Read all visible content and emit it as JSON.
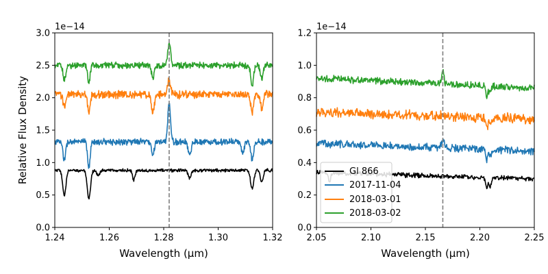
{
  "chart_data": [
    {
      "type": "line",
      "panel": "left",
      "xlabel": "Wavelength (μm)",
      "ylabel": "Relative Flux Density",
      "y_offset_text": "1e−14",
      "xlim": [
        1.24,
        1.32
      ],
      "ylim": [
        0.0,
        3.0
      ],
      "xticks": [
        1.24,
        1.26,
        1.28,
        1.3,
        1.32
      ],
      "xtick_labels": [
        "1.24",
        "1.26",
        "1.28",
        "1.30",
        "1.32"
      ],
      "yticks": [
        0.0,
        0.5,
        1.0,
        1.5,
        2.0,
        2.5,
        3.0
      ],
      "ytick_labels": [
        "0.0",
        "0.5",
        "1.0",
        "1.5",
        "2.0",
        "2.5",
        "3.0"
      ],
      "reference_line": {
        "x": 1.282,
        "style": "dashed",
        "color": "#7f7f7f"
      },
      "grid": false,
      "series": [
        {
          "color": "#000000",
          "base": 0.88,
          "noise": 0.02,
          "features": [
            {
              "x": 1.2435,
              "depth": -0.38,
              "width": 0.0006
            },
            {
              "x": 1.2525,
              "depth": -0.45,
              "width": 0.0006
            },
            {
              "x": 1.256,
              "depth": -0.08,
              "width": 0.0005
            },
            {
              "x": 1.269,
              "depth": -0.15,
              "width": 0.0005
            },
            {
              "x": 1.2895,
              "depth": -0.12,
              "width": 0.0005
            },
            {
              "x": 1.3125,
              "depth": -0.28,
              "width": 0.0006
            },
            {
              "x": 1.316,
              "depth": -0.18,
              "width": 0.0005
            }
          ]
        },
        {
          "color": "#1f77b4",
          "base": 1.32,
          "noise": 0.04,
          "features": [
            {
              "x": 1.282,
              "depth": 0.58,
              "width": 0.0005
            },
            {
              "x": 1.2435,
              "depth": -0.28,
              "width": 0.0005
            },
            {
              "x": 1.2525,
              "depth": -0.38,
              "width": 0.0005
            },
            {
              "x": 1.276,
              "depth": -0.2,
              "width": 0.0005
            },
            {
              "x": 1.2895,
              "depth": -0.22,
              "width": 0.0005
            },
            {
              "x": 1.309,
              "depth": -0.18,
              "width": 0.0005
            },
            {
              "x": 1.3125,
              "depth": -0.28,
              "width": 0.0005
            }
          ]
        },
        {
          "color": "#ff7f0e",
          "base": 2.05,
          "noise": 0.05,
          "features": [
            {
              "x": 1.282,
              "depth": 0.22,
              "width": 0.0005
            },
            {
              "x": 1.2435,
              "depth": -0.18,
              "width": 0.0005
            },
            {
              "x": 1.2525,
              "depth": -0.25,
              "width": 0.0005
            },
            {
              "x": 1.276,
              "depth": -0.3,
              "width": 0.0005
            },
            {
              "x": 1.3125,
              "depth": -0.28,
              "width": 0.0005
            },
            {
              "x": 1.316,
              "depth": -0.22,
              "width": 0.0005
            }
          ]
        },
        {
          "color": "#2ca02c",
          "base": 2.5,
          "noise": 0.04,
          "features": [
            {
              "x": 1.282,
              "depth": 0.35,
              "width": 0.0005
            },
            {
              "x": 1.2435,
              "depth": -0.22,
              "width": 0.0005
            },
            {
              "x": 1.2525,
              "depth": -0.25,
              "width": 0.0005
            },
            {
              "x": 1.276,
              "depth": -0.2,
              "width": 0.0005
            },
            {
              "x": 1.3125,
              "depth": -0.3,
              "width": 0.0005
            },
            {
              "x": 1.316,
              "depth": -0.22,
              "width": 0.0005
            }
          ]
        }
      ]
    },
    {
      "type": "line",
      "panel": "right",
      "xlabel": "Wavelength (μm)",
      "ylabel": "",
      "y_offset_text": "1e−14",
      "xlim": [
        2.05,
        2.25
      ],
      "ylim": [
        0.0,
        1.2
      ],
      "xticks": [
        2.05,
        2.1,
        2.15,
        2.2,
        2.25
      ],
      "xtick_labels": [
        "2.05",
        "2.10",
        "2.15",
        "2.20",
        "2.25"
      ],
      "yticks": [
        0.0,
        0.2,
        0.4,
        0.6,
        0.8,
        1.0,
        1.2
      ],
      "ytick_labels": [
        "0.0",
        "0.2",
        "0.4",
        "0.6",
        "0.8",
        "1.0",
        "1.2"
      ],
      "reference_line": {
        "x": 2.166,
        "style": "dashed",
        "color": "#7f7f7f"
      },
      "grid": false,
      "legend_position": "lower-left",
      "series": [
        {
          "name": "Gl 866",
          "color": "#000000",
          "base_start": 0.34,
          "base_end": 0.3,
          "noise": 0.012,
          "features": [
            {
              "x": 2.062,
              "depth": -0.06,
              "width": 0.001
            },
            {
              "x": 2.2065,
              "depth": -0.07,
              "width": 0.001
            },
            {
              "x": 2.2095,
              "depth": -0.06,
              "width": 0.001
            }
          ]
        },
        {
          "name": "2017-11-04",
          "color": "#1f77b4",
          "base_start": 0.52,
          "base_end": 0.47,
          "noise": 0.02,
          "features": [
            {
              "x": 2.166,
              "depth": 0.05,
              "width": 0.0012
            },
            {
              "x": 2.2065,
              "depth": -0.06,
              "width": 0.001
            },
            {
              "x": 2.2095,
              "depth": -0.05,
              "width": 0.001
            }
          ]
        },
        {
          "name": "2018-03-01",
          "color": "#ff7f0e",
          "base_start": 0.71,
          "base_end": 0.67,
          "noise": 0.025,
          "features": [
            {
              "x": 2.2065,
              "depth": -0.07,
              "width": 0.001
            },
            {
              "x": 2.2095,
              "depth": -0.05,
              "width": 0.001
            }
          ]
        },
        {
          "name": "2018-03-02",
          "color": "#2ca02c",
          "base_start": 0.92,
          "base_end": 0.86,
          "noise": 0.018,
          "features": [
            {
              "x": 2.166,
              "depth": 0.09,
              "width": 0.001
            },
            {
              "x": 2.2065,
              "depth": -0.07,
              "width": 0.001
            },
            {
              "x": 2.2095,
              "depth": -0.04,
              "width": 0.001
            }
          ]
        }
      ]
    }
  ]
}
